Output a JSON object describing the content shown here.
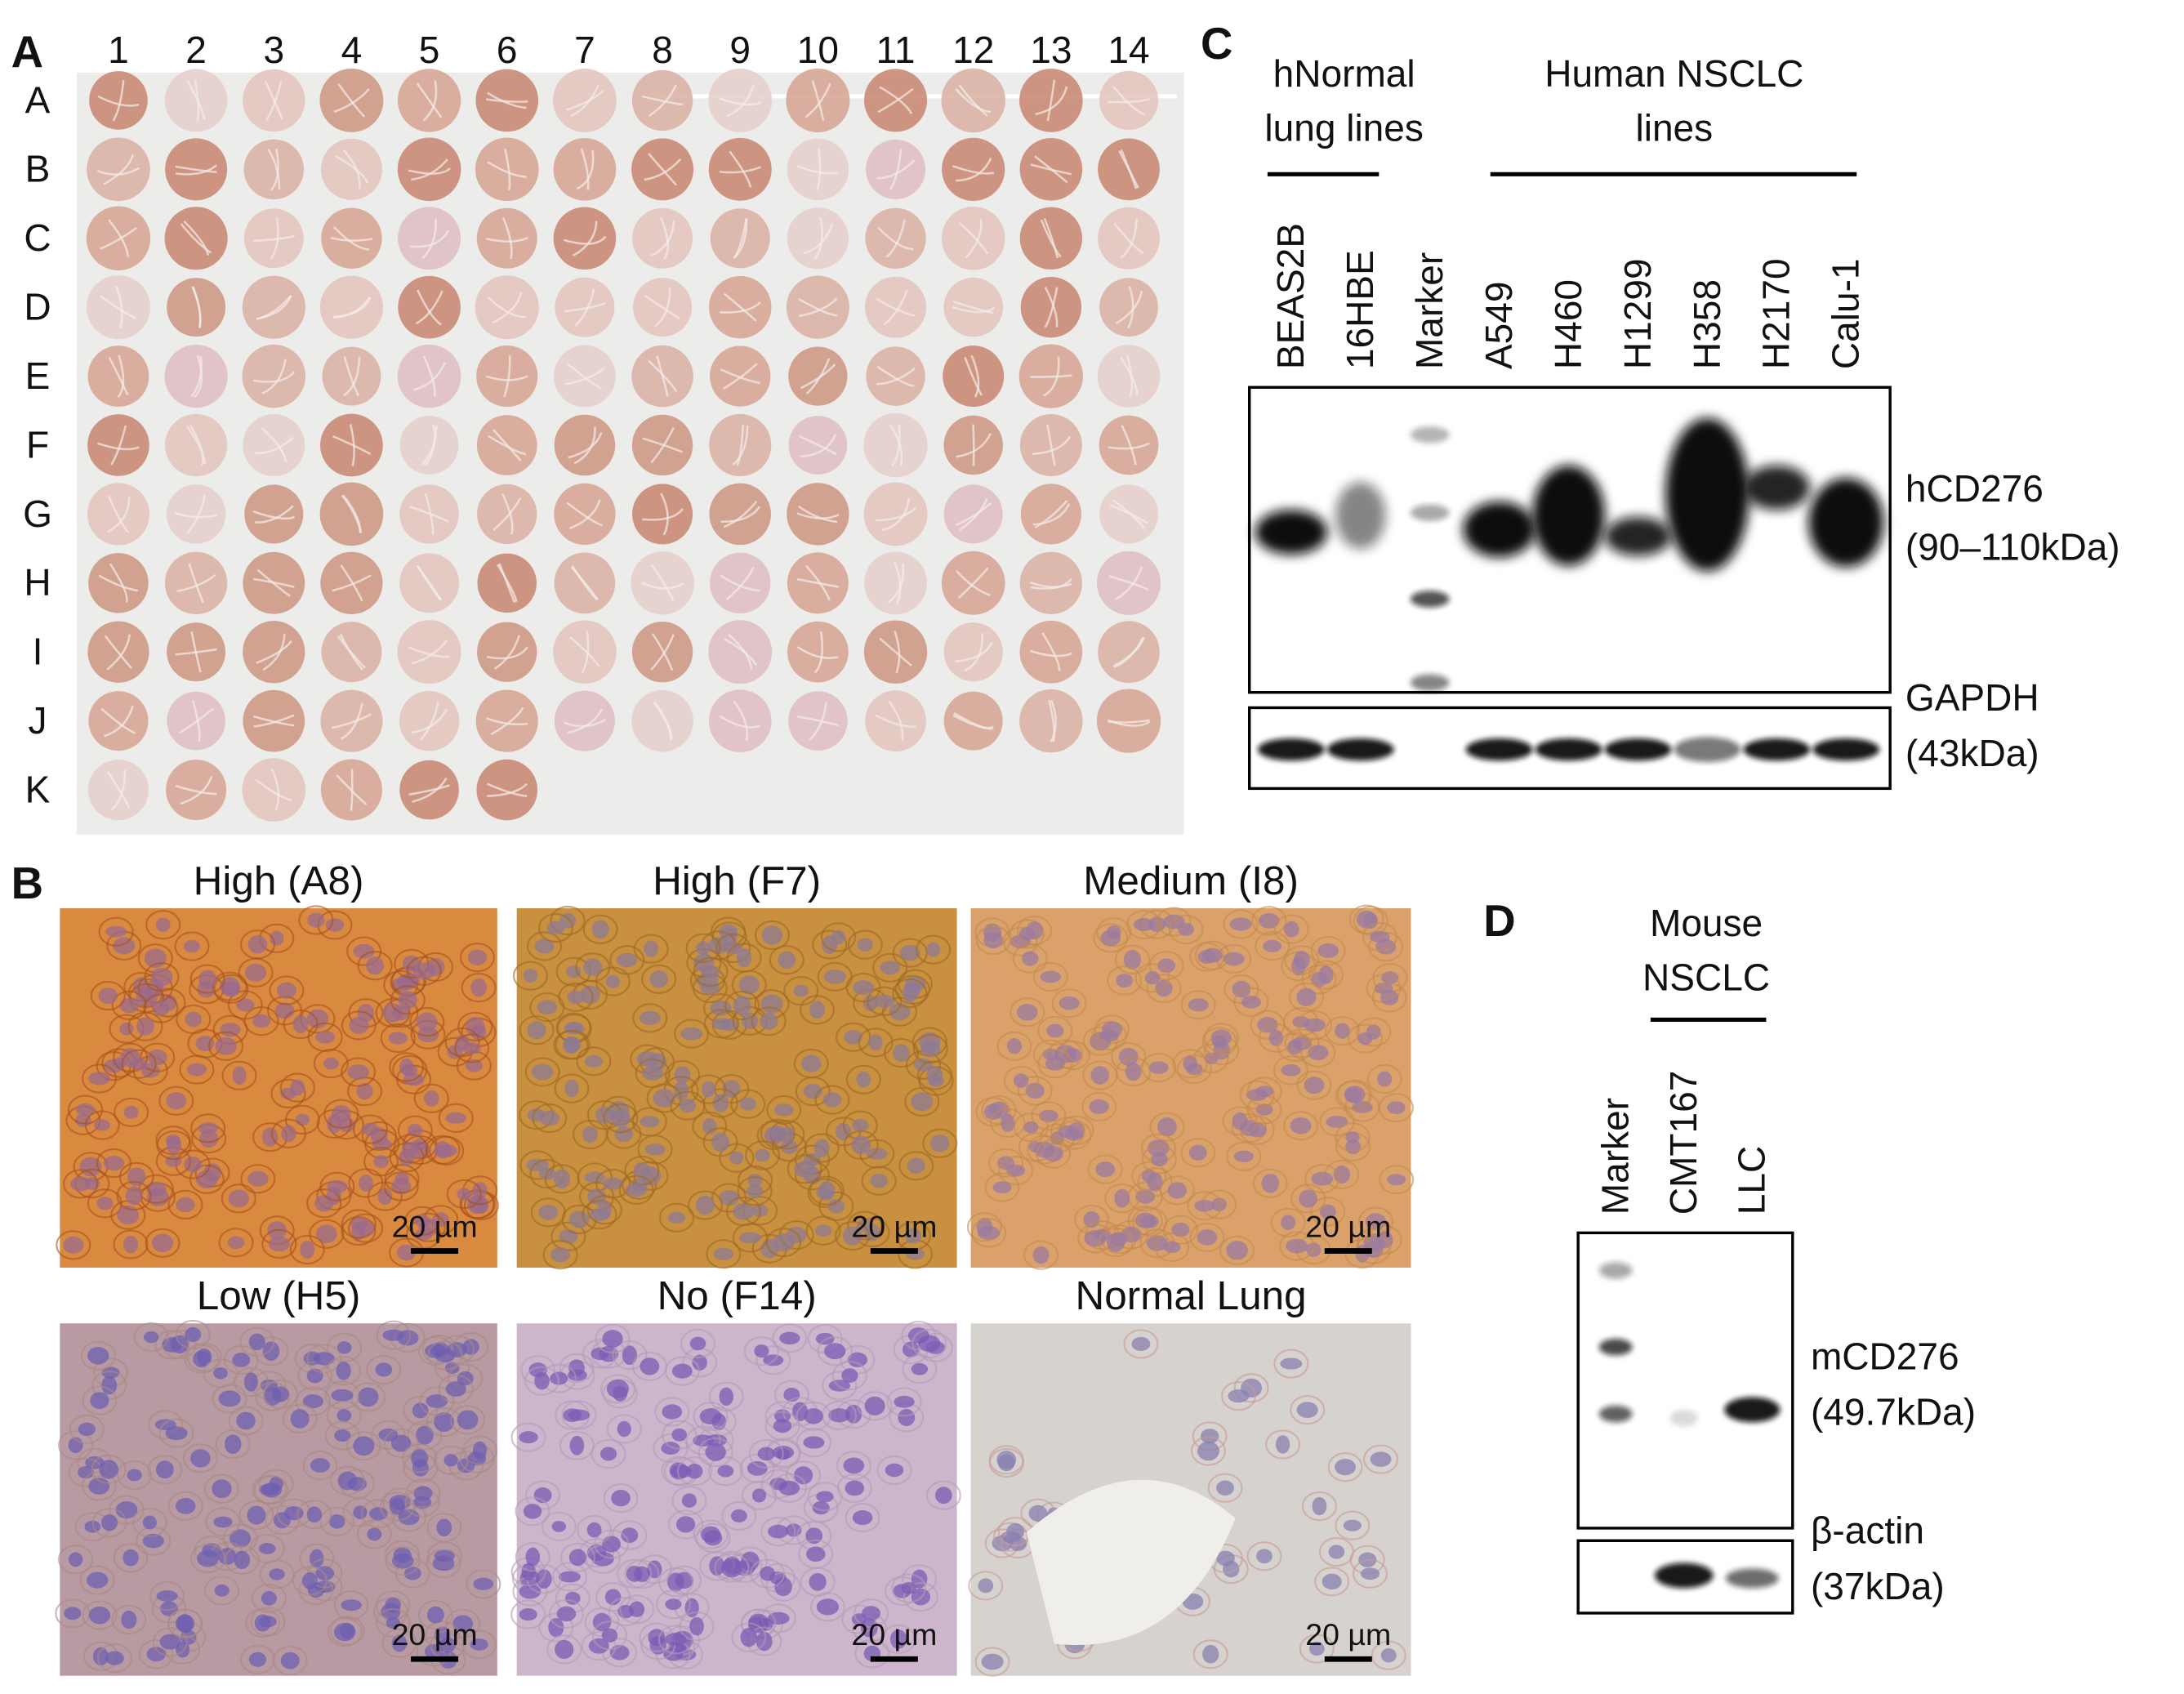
{
  "panel_a": {
    "label": "A",
    "columns": [
      "1",
      "2",
      "3",
      "4",
      "5",
      "6",
      "7",
      "8",
      "9",
      "10",
      "11",
      "12",
      "13",
      "14"
    ],
    "rows": [
      "A",
      "B",
      "C",
      "D",
      "E",
      "F",
      "G",
      "H",
      "I",
      "J",
      "K"
    ]
  },
  "panel_b": {
    "label": "B",
    "images": [
      {
        "title": "High (A8)",
        "scale_bar": "20 µm"
      },
      {
        "title": "High (F7)",
        "scale_bar": "20 µm"
      },
      {
        "title": "Medium (I8)",
        "scale_bar": "20 µm"
      },
      {
        "title": "Low (H5)",
        "scale_bar": "20 µm"
      },
      {
        "title": "No (F14)",
        "scale_bar": "20 µm"
      },
      {
        "title": "Normal Lung",
        "scale_bar": "20 µm"
      }
    ]
  },
  "panel_c": {
    "label": "C",
    "groups": [
      {
        "lines": [
          "hNormal",
          "lung lines"
        ]
      },
      {
        "lines": [
          "Human NSCLC",
          "lines"
        ]
      }
    ],
    "lanes": [
      "BEAS2B",
      "16HBE",
      "Marker",
      "A549",
      "H460",
      "H1299",
      "H358",
      "H2170",
      "Calu-1"
    ],
    "blots": [
      {
        "target": "hCD276",
        "size": "(90–110kDa)"
      },
      {
        "target": "GAPDH",
        "size": "(43kDa)"
      }
    ]
  },
  "panel_d": {
    "label": "D",
    "group": {
      "lines": [
        "Mouse",
        "NSCLC"
      ]
    },
    "lanes": [
      "Marker",
      "CMT167",
      "LLC"
    ],
    "blots": [
      {
        "target": "mCD276",
        "size": "(49.7kDa)"
      },
      {
        "target": "β-actin",
        "size": "(37kDa)"
      }
    ]
  }
}
